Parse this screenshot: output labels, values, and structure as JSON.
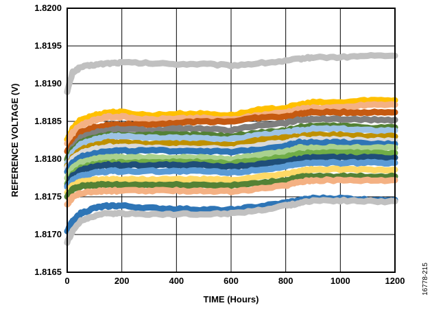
{
  "chart_data": {
    "type": "line",
    "title": "",
    "xlabel": "TIME (Hours)",
    "ylabel": "REFERENCE VOLTAGE (V)",
    "xlim": [
      0,
      1200
    ],
    "ylim": [
      1.8165,
      1.82
    ],
    "x_ticks": [
      "0",
      "200",
      "400",
      "600",
      "800",
      "1000",
      "1200"
    ],
    "y_ticks": [
      "1.8165",
      "1.8170",
      "1.8175",
      "1.8180",
      "1.8185",
      "1.8190",
      "1.8195",
      "1.8200"
    ],
    "grid": true,
    "legend": "none",
    "figure_id": "16778-215",
    "x": [
      0,
      20,
      50,
      100,
      150,
      200,
      300,
      400,
      500,
      600,
      700,
      800,
      850,
      900,
      1000,
      1100,
      1200
    ],
    "series": [
      {
        "color": "#c0c0c0",
        "values": [
          1.8189,
          1.81915,
          1.81922,
          1.81925,
          1.81927,
          1.81928,
          1.81927,
          1.81926,
          1.81926,
          1.81924,
          1.81927,
          1.8193,
          1.81933,
          1.81935,
          1.81935,
          1.81937,
          1.81937
        ]
      },
      {
        "color": "#ffc000",
        "values": [
          1.81825,
          1.8184,
          1.81852,
          1.81858,
          1.81862,
          1.81862,
          1.81858,
          1.8186,
          1.8186,
          1.81858,
          1.81865,
          1.81868,
          1.81872,
          1.81875,
          1.81875,
          1.81878,
          1.81878
        ]
      },
      {
        "color": "#f4b183",
        "values": [
          1.8182,
          1.81835,
          1.81845,
          1.81852,
          1.81856,
          1.81856,
          1.81852,
          1.81854,
          1.81854,
          1.81852,
          1.81858,
          1.81862,
          1.81866,
          1.81868,
          1.81868,
          1.81872,
          1.81872
        ]
      },
      {
        "color": "#c55a11",
        "values": [
          1.8181,
          1.8182,
          1.81835,
          1.81842,
          1.81845,
          1.81846,
          1.81846,
          1.81848,
          1.8185,
          1.8185,
          1.81855,
          1.81856,
          1.8186,
          1.81862,
          1.81862,
          1.81862,
          1.81862
        ]
      },
      {
        "color": "#7f7f7f",
        "values": [
          1.818,
          1.81815,
          1.81828,
          1.81835,
          1.81838,
          1.8184,
          1.81838,
          1.8184,
          1.8184,
          1.81838,
          1.81845,
          1.81848,
          1.81852,
          1.81853,
          1.81853,
          1.81852,
          1.81852
        ]
      },
      {
        "color": "#538135",
        "values": [
          1.818,
          1.81812,
          1.81822,
          1.81828,
          1.81832,
          1.81832,
          1.81832,
          1.81832,
          1.81832,
          1.8183,
          1.81835,
          1.81838,
          1.81842,
          1.81844,
          1.81844,
          1.81842,
          1.81842
        ]
      },
      {
        "color": "#9dc3e6",
        "values": [
          1.81795,
          1.81808,
          1.8182,
          1.81826,
          1.8183,
          1.8183,
          1.81828,
          1.81828,
          1.81828,
          1.81826,
          1.81832,
          1.81835,
          1.81838,
          1.8184,
          1.8184,
          1.81838,
          1.81838
        ]
      },
      {
        "color": "#bf9000",
        "values": [
          1.8179,
          1.81802,
          1.81812,
          1.81818,
          1.81822,
          1.81822,
          1.8182,
          1.8182,
          1.8182,
          1.81818,
          1.81825,
          1.81828,
          1.8183,
          1.81832,
          1.81832,
          1.8183,
          1.8183
        ]
      },
      {
        "color": "#d9d9d9",
        "values": [
          1.81788,
          1.818,
          1.81808,
          1.81813,
          1.81816,
          1.81816,
          1.81815,
          1.81814,
          1.81814,
          1.81813,
          1.81818,
          1.81822,
          1.81826,
          1.81826,
          1.81826,
          1.81824,
          1.81824
        ]
      },
      {
        "color": "#2e75b6",
        "values": [
          1.81783,
          1.81795,
          1.81803,
          1.81808,
          1.81811,
          1.81811,
          1.81811,
          1.81811,
          1.81811,
          1.81809,
          1.81813,
          1.81818,
          1.81822,
          1.81822,
          1.81822,
          1.8182,
          1.8182
        ]
      },
      {
        "color": "#a9d18e",
        "values": [
          1.81775,
          1.81788,
          1.81795,
          1.818,
          1.81802,
          1.81802,
          1.81802,
          1.81802,
          1.81802,
          1.818,
          1.81805,
          1.8181,
          1.81815,
          1.81815,
          1.81815,
          1.81815,
          1.81815
        ]
      },
      {
        "color": "#70ad47",
        "values": [
          1.81768,
          1.8178,
          1.81788,
          1.81793,
          1.81795,
          1.81795,
          1.81796,
          1.81796,
          1.81796,
          1.81794,
          1.81798,
          1.81803,
          1.81807,
          1.81808,
          1.81808,
          1.81808,
          1.81808
        ]
      },
      {
        "color": "#1f4e79",
        "values": [
          1.81765,
          1.81778,
          1.81785,
          1.8179,
          1.81792,
          1.81792,
          1.81792,
          1.81792,
          1.81792,
          1.8179,
          1.81793,
          1.81797,
          1.818,
          1.81802,
          1.81802,
          1.81802,
          1.81802
        ]
      },
      {
        "color": "#5b9bd5",
        "values": [
          1.81762,
          1.81772,
          1.81778,
          1.81782,
          1.81784,
          1.81784,
          1.81784,
          1.81784,
          1.81784,
          1.81782,
          1.81786,
          1.8179,
          1.81793,
          1.81795,
          1.81795,
          1.81795,
          1.81795
        ]
      },
      {
        "color": "#ffd966",
        "values": [
          1.81755,
          1.81765,
          1.8177,
          1.81772,
          1.81773,
          1.81773,
          1.81773,
          1.81773,
          1.81773,
          1.81772,
          1.81776,
          1.8178,
          1.81784,
          1.81786,
          1.81786,
          1.81786,
          1.81786
        ]
      },
      {
        "color": "#548235",
        "values": [
          1.8175,
          1.8176,
          1.81764,
          1.81766,
          1.81766,
          1.81766,
          1.81766,
          1.81766,
          1.81766,
          1.81765,
          1.81768,
          1.81772,
          1.81776,
          1.81777,
          1.81777,
          1.81777,
          1.81777
        ]
      },
      {
        "color": "#f4b183",
        "values": [
          1.8174,
          1.8175,
          1.81755,
          1.81757,
          1.81758,
          1.81758,
          1.81758,
          1.81758,
          1.81758,
          1.81757,
          1.8176,
          1.81765,
          1.8177,
          1.81772,
          1.81772,
          1.81772,
          1.81772
        ]
      },
      {
        "color": "#2e75b6",
        "values": [
          1.81705,
          1.81718,
          1.81728,
          1.81735,
          1.81738,
          1.81738,
          1.81735,
          1.81734,
          1.81733,
          1.81733,
          1.81737,
          1.81742,
          1.81745,
          1.81748,
          1.81748,
          1.81746,
          1.81746
        ]
      },
      {
        "color": "#c0c0c0",
        "values": [
          1.8169,
          1.81705,
          1.81718,
          1.81725,
          1.81728,
          1.81728,
          1.81727,
          1.81727,
          1.81727,
          1.81728,
          1.81732,
          1.81738,
          1.81742,
          1.81745,
          1.81745,
          1.81744,
          1.81744
        ]
      }
    ]
  }
}
